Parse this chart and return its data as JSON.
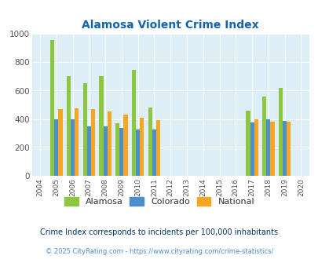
{
  "title": "Alamosa Violent Crime Index",
  "title_color": "#1464ac",
  "years": [
    2004,
    2005,
    2006,
    2007,
    2008,
    2009,
    2010,
    2011,
    2012,
    2013,
    2014,
    2015,
    2016,
    2017,
    2018,
    2019,
    2020
  ],
  "alamosa": [
    null,
    955,
    700,
    655,
    700,
    370,
    745,
    480,
    null,
    null,
    null,
    null,
    null,
    458,
    558,
    622,
    null
  ],
  "colorado": [
    null,
    400,
    397,
    352,
    350,
    340,
    330,
    325,
    null,
    null,
    null,
    null,
    null,
    375,
    400,
    388,
    null
  ],
  "national": [
    null,
    468,
    475,
    468,
    455,
    432,
    408,
    392,
    null,
    null,
    null,
    null,
    null,
    400,
    385,
    380,
    null
  ],
  "bar_width": 0.25,
  "alamosa_color": "#8dc63f",
  "colorado_color": "#4d8fcc",
  "national_color": "#f5a623",
  "plot_bg_color": "#ddeef6",
  "ylim": [
    0,
    1000
  ],
  "yticks": [
    0,
    200,
    400,
    600,
    800,
    1000
  ],
  "footnote": "Crime Index corresponds to incidents per 100,000 inhabitants",
  "footnote_color": "#003366",
  "copyright": "© 2025 CityRating.com - https://www.cityrating.com/crime-statistics/",
  "copyright_color": "#4d8fcc",
  "legend_labels": [
    "Alamosa",
    "Colorado",
    "National"
  ],
  "figsize": [
    4.06,
    3.3
  ],
  "dpi": 100
}
